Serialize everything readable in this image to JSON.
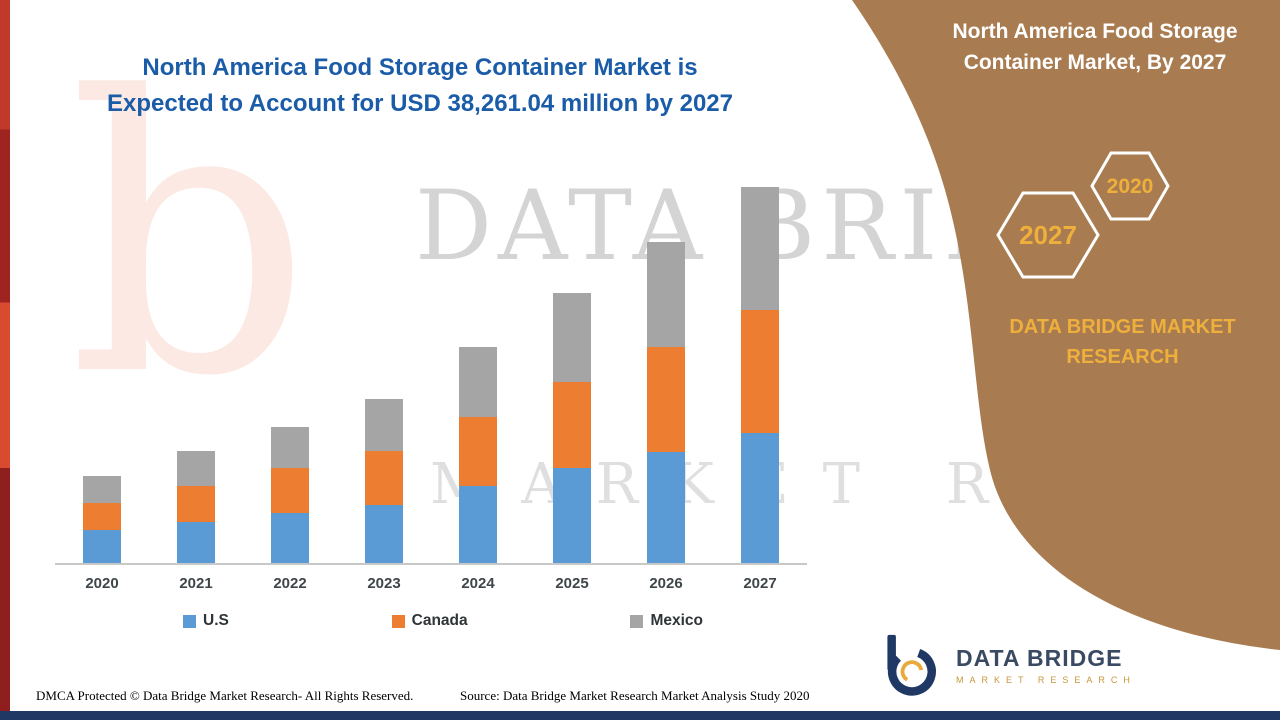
{
  "header": {
    "title_line1": "North America Food Storage Container Market is",
    "title_line2": "Expected to Account for USD 38,261.04 million by 2027"
  },
  "chart_data": {
    "type": "bar",
    "stacked": true,
    "title": "North America Food Storage Container Market is Expected to Account for USD 38,261.04 million by 2027",
    "unit": "USD million",
    "categories": [
      "2020",
      "2021",
      "2022",
      "2023",
      "2024",
      "2025",
      "2026",
      "2027"
    ],
    "series": [
      {
        "name": "U.S",
        "color": "#5B9BD5",
        "values": [
          3340,
          4170,
          5110,
          5940,
          7820,
          9690,
          11360,
          13240
        ]
      },
      {
        "name": "Canada",
        "color": "#ED7D31",
        "values": [
          2710,
          3650,
          4590,
          5530,
          7090,
          8760,
          10740,
          12510
        ]
      },
      {
        "name": "Mexico",
        "color": "#A5A5A5",
        "values": [
          2710,
          3550,
          4170,
          5310,
          7190,
          9070,
          10740,
          12511
        ]
      }
    ],
    "totals": [
      8760,
      11370,
      13870,
      16780,
      22100,
      27520,
      32840,
      38261
    ],
    "ylim": [
      0,
      40000
    ],
    "gridlines": false,
    "legend_position": "bottom"
  },
  "side_panel": {
    "title": "North America Food Storage Container Market, By 2027",
    "badges": [
      "2027",
      "2020"
    ],
    "brand": "DATA BRIDGE MARKET RESEARCH"
  },
  "watermark": {
    "line1": "DATA BRIDGE",
    "line2": "MARKET RESEARCH",
    "logo_glyph": "b"
  },
  "logo": {
    "name": "DATA BRIDGE",
    "sub": "MARKET RESEARCH"
  },
  "footer": {
    "dmca": "DMCA Protected © Data Bridge Market Research- All Rights Reserved.",
    "source": "Source: Data Bridge Market Research Market Analysis Study 2020"
  },
  "colors": {
    "headline_blue": "#1B5CA8",
    "panel_brown": "#A87C50",
    "accent_gold": "#EFAF3C",
    "navy": "#1F3864",
    "watermark_gray": "#D4D4D4",
    "strip_red_bright": "#D84B2F",
    "strip_red_dark": "#8F1F1E"
  }
}
